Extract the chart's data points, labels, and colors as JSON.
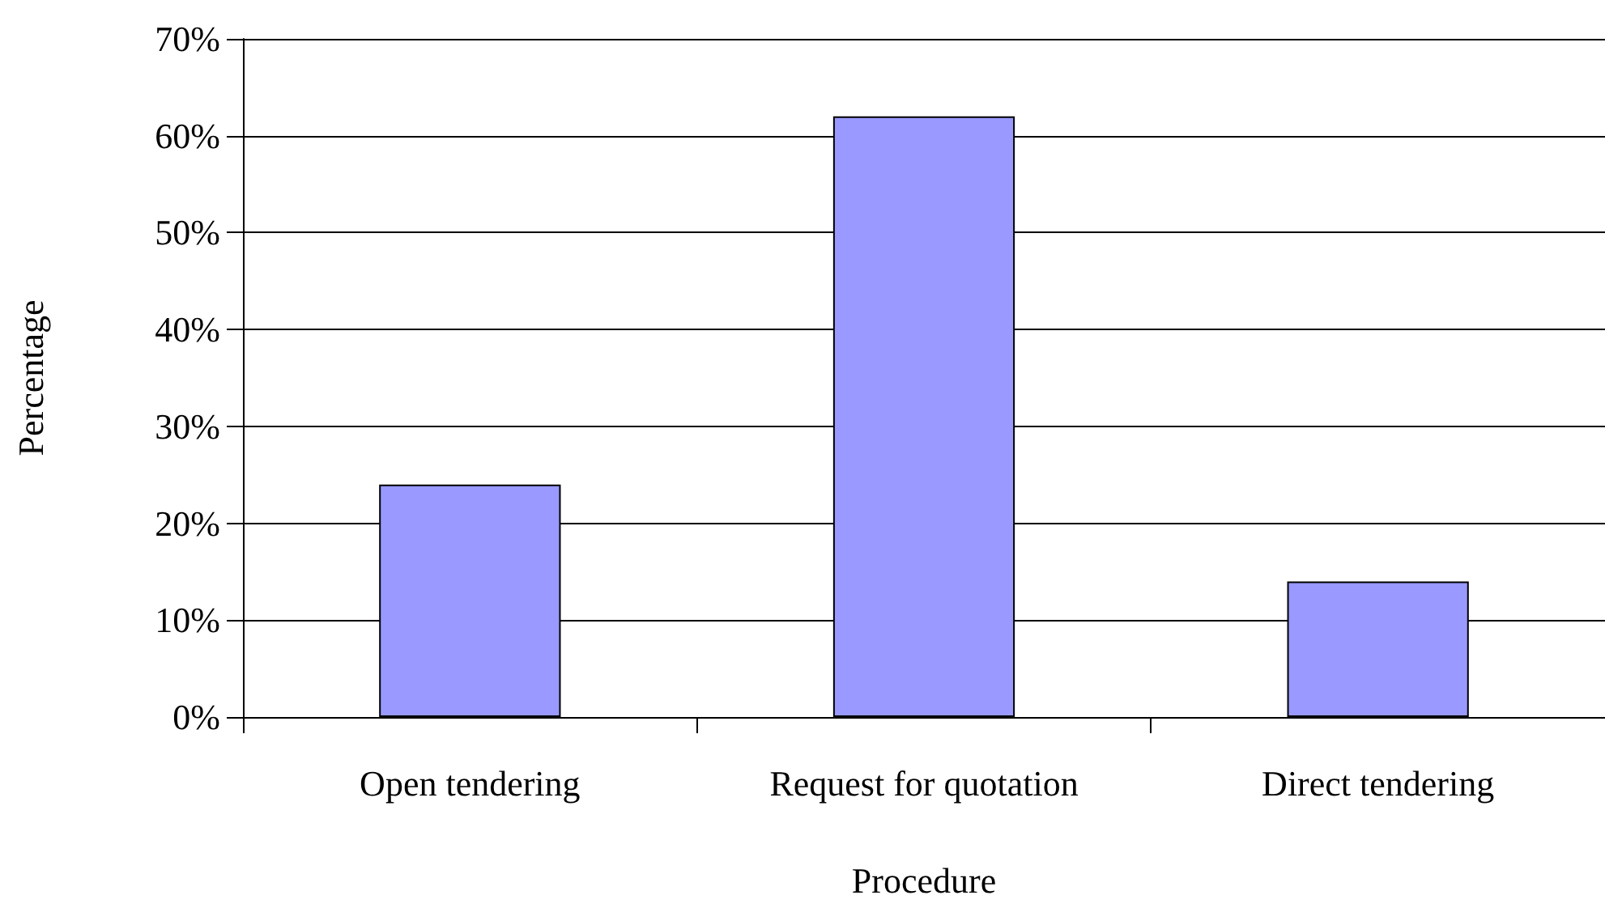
{
  "chart_data": {
    "type": "bar",
    "xlabel": "Procedure",
    "ylabel": "Percentage",
    "categories": [
      "Open tendering",
      "Request for quotation",
      "Direct tendering"
    ],
    "values": [
      24,
      62,
      14
    ],
    "color": "#9999ff",
    "ylim": [
      0,
      70
    ],
    "yticks": [
      {
        "value": 0,
        "label": "0%"
      },
      {
        "value": 10,
        "label": "10%"
      },
      {
        "value": 20,
        "label": "20%"
      },
      {
        "value": 30,
        "label": "30%"
      },
      {
        "value": 40,
        "label": "40%"
      },
      {
        "value": 50,
        "label": "50%"
      },
      {
        "value": 60,
        "label": "60%"
      },
      {
        "value": 70,
        "label": "70%"
      }
    ],
    "grid": true
  }
}
